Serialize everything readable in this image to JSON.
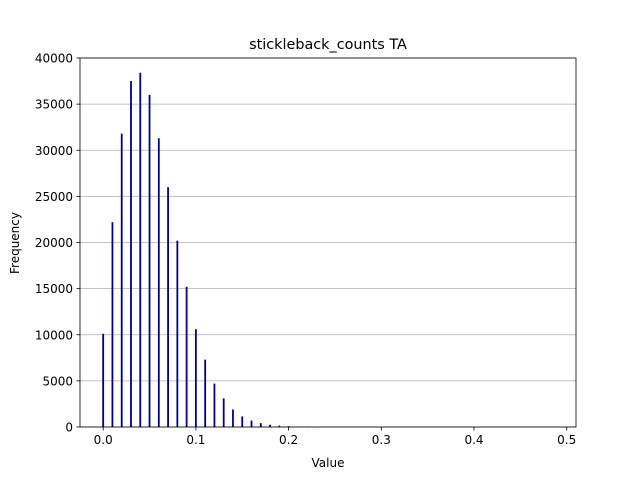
{
  "chart_data": {
    "type": "bar",
    "title": "stickleback_counts TA",
    "xlabel": "Value",
    "ylabel": "Frequency",
    "xlim": [
      -0.025,
      0.51
    ],
    "ylim": [
      0,
      40000
    ],
    "xticks": [
      "0.0",
      "0.1",
      "0.2",
      "0.3",
      "0.4",
      "0.5"
    ],
    "yticks": [
      "0",
      "5000",
      "10000",
      "15000",
      "20000",
      "25000",
      "30000",
      "35000",
      "40000"
    ],
    "grid": "y-axis",
    "bar_color": "#00008b",
    "grid_color": "#b0b0b0",
    "x": [
      0.0,
      0.01,
      0.02,
      0.03,
      0.04,
      0.05,
      0.06,
      0.07,
      0.08,
      0.09,
      0.1,
      0.11,
      0.12,
      0.13,
      0.14,
      0.15,
      0.16,
      0.17,
      0.18,
      0.19,
      0.2,
      0.21,
      0.22,
      0.23
    ],
    "values": [
      10100,
      22200,
      31800,
      37500,
      38400,
      36000,
      31300,
      26000,
      20200,
      15200,
      10600,
      7300,
      4700,
      3100,
      1900,
      1150,
      700,
      420,
      250,
      150,
      90,
      50,
      30,
      15
    ]
  }
}
